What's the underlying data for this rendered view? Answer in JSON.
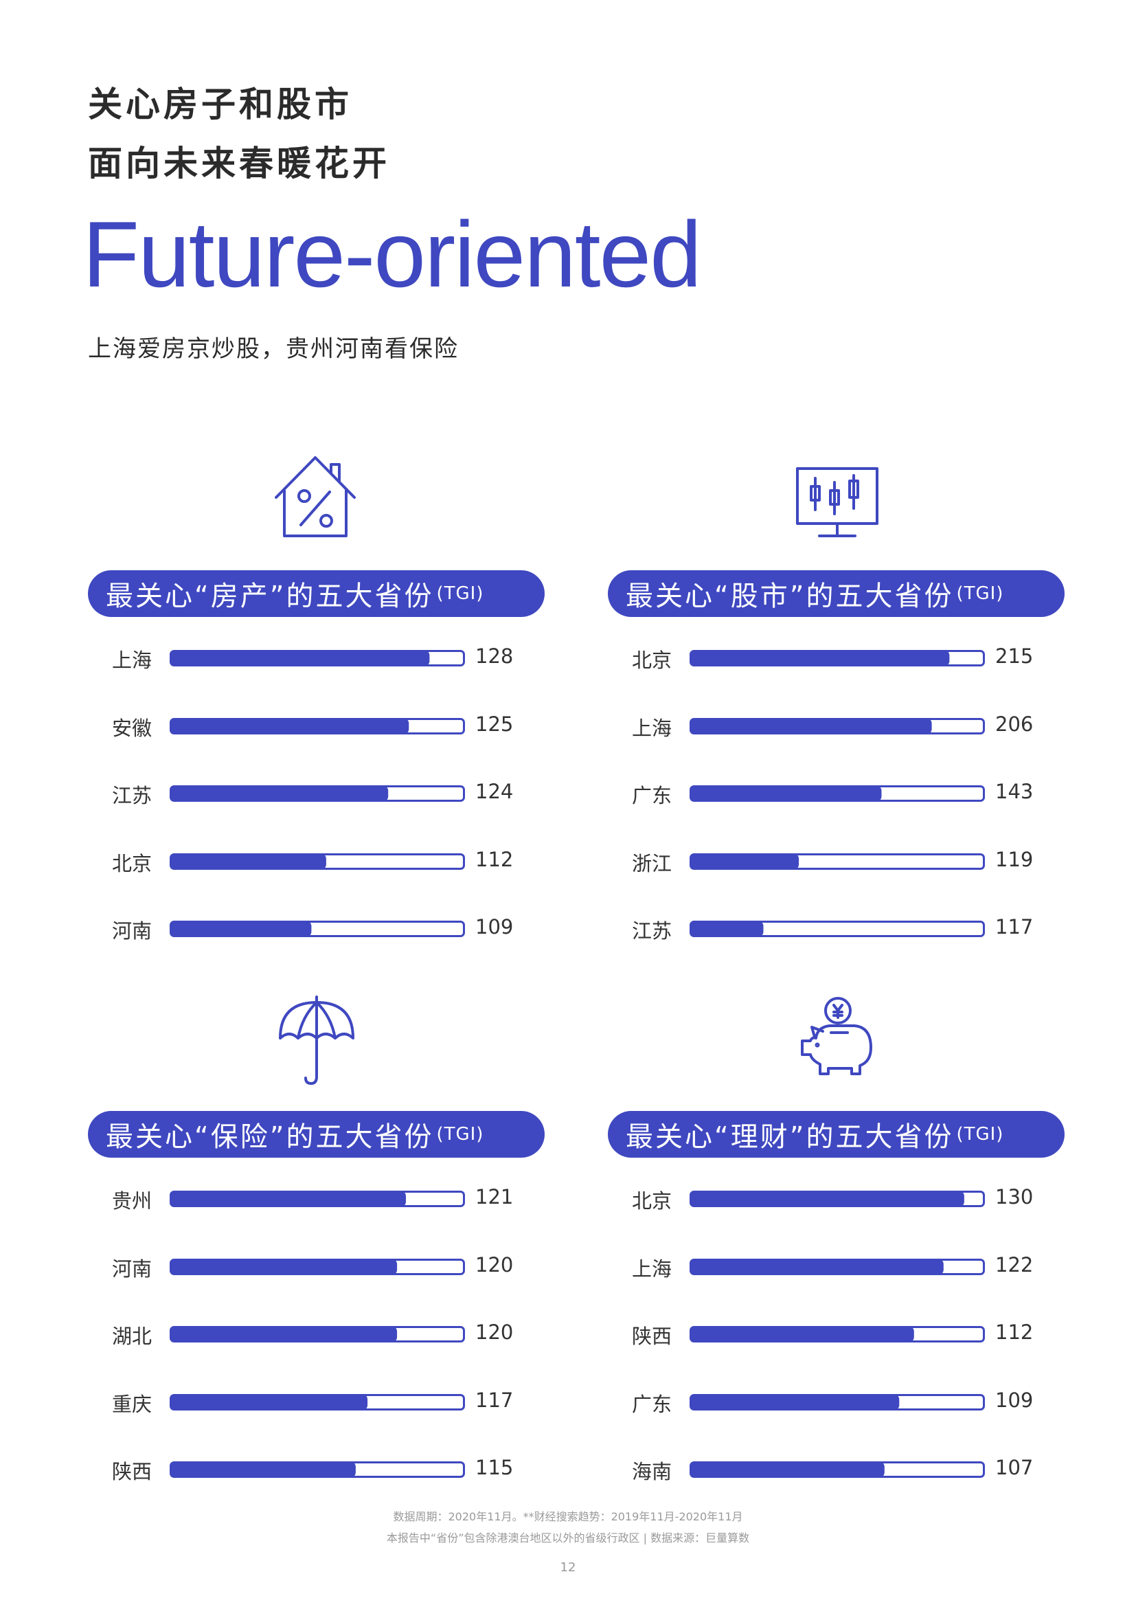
{
  "heading": {
    "line1": "关心房子和股市",
    "line2": "面向未来春暖花开",
    "english": "Future-oriented",
    "subtitle": "上海爱房京炒股，贵州河南看保险"
  },
  "colors": {
    "accent": "#3f48c0",
    "text": "#333333",
    "muted": "#9a9a9a"
  },
  "chart_data": [
    {
      "type": "bar",
      "icon": "house-percent-icon",
      "title": "最关心“房产”的五大省份",
      "unit": "(TGI)",
      "categories": [
        "上海",
        "安徽",
        "江苏",
        "北京",
        "河南"
      ],
      "values": [
        128,
        125,
        124,
        112,
        109
      ],
      "fill": [
        0.88,
        0.81,
        0.74,
        0.53,
        0.48
      ]
    },
    {
      "type": "bar",
      "icon": "stock-monitor-icon",
      "title": "最关心“股市”的五大省份",
      "unit": "(TGI)",
      "categories": [
        "北京",
        "上海",
        "广东",
        "浙江",
        "江苏"
      ],
      "values": [
        215,
        206,
        143,
        119,
        117
      ],
      "fill": [
        0.88,
        0.82,
        0.65,
        0.37,
        0.25
      ]
    },
    {
      "type": "bar",
      "icon": "umbrella-icon",
      "title": "最关心“保险”的五大省份",
      "unit": "(TGI)",
      "categories": [
        "贵州",
        "河南",
        "湖北",
        "重庆",
        "陕西"
      ],
      "values": [
        121,
        120,
        120,
        117,
        115
      ],
      "fill": [
        0.8,
        0.77,
        0.77,
        0.67,
        0.63
      ]
    },
    {
      "type": "bar",
      "icon": "piggy-bank-icon",
      "title": "最关心“理财”的五大省份",
      "unit": "(TGI)",
      "categories": [
        "北京",
        "上海",
        "陕西",
        "广东",
        "海南"
      ],
      "values": [
        130,
        122,
        112,
        109,
        107
      ],
      "fill": [
        0.93,
        0.86,
        0.76,
        0.71,
        0.66
      ]
    }
  ],
  "footer": {
    "line1": "数据周期：2020年11月。**财经搜索趋势：2019年11月-2020年11月",
    "line2": "本报告中“省份”包含除港澳台地区以外的省级行政区 | 数据来源：巨量算数",
    "page": "12"
  }
}
